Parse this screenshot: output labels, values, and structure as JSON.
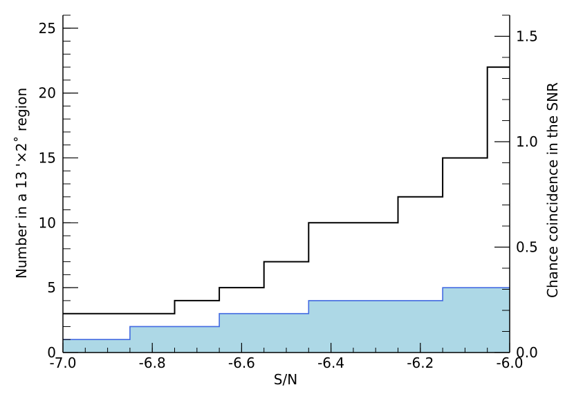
{
  "chart_data": {
    "type": "area",
    "xlabel": "S/N",
    "ylabel": "Number in a 13 '×2˚ region",
    "y2label": "Chance coincidence in the SNR",
    "xlim": [
      -7.0,
      -6.0
    ],
    "ylim": [
      0,
      26
    ],
    "y2lim": [
      0,
      1.6
    ],
    "x_ticks": [
      "-7.0",
      "-6.8",
      "-6.6",
      "-6.4",
      "-6.2",
      "-6.0"
    ],
    "y_ticks": [
      "0",
      "5",
      "10",
      "15",
      "20",
      "25"
    ],
    "y2_ticks": [
      "0.0",
      "0.5",
      "1.0",
      "1.5"
    ],
    "grid": false,
    "colors": {
      "count_line": "#000000",
      "chance_fill": "#add8e6",
      "chance_line": "#4169e1"
    },
    "series": [
      {
        "x": [
          -7.0,
          -6.75,
          -6.75,
          -6.65,
          -6.65,
          -6.55,
          -6.55,
          -6.45,
          -6.45,
          -6.25,
          -6.25,
          -6.15,
          -6.15,
          -6.05,
          -6.05,
          -6.0
        ],
        "values": [
          3,
          3,
          4,
          4,
          5,
          5,
          7,
          7,
          10,
          10,
          12,
          12,
          15,
          15,
          22,
          22
        ]
      },
      {
        "x": [
          -7.0,
          -6.85,
          -6.85,
          -6.65,
          -6.65,
          -6.45,
          -6.45,
          -6.15,
          -6.15,
          -6.0
        ],
        "values": [
          1,
          1,
          2,
          2,
          3,
          3,
          4,
          4,
          5,
          5
        ]
      }
    ]
  }
}
